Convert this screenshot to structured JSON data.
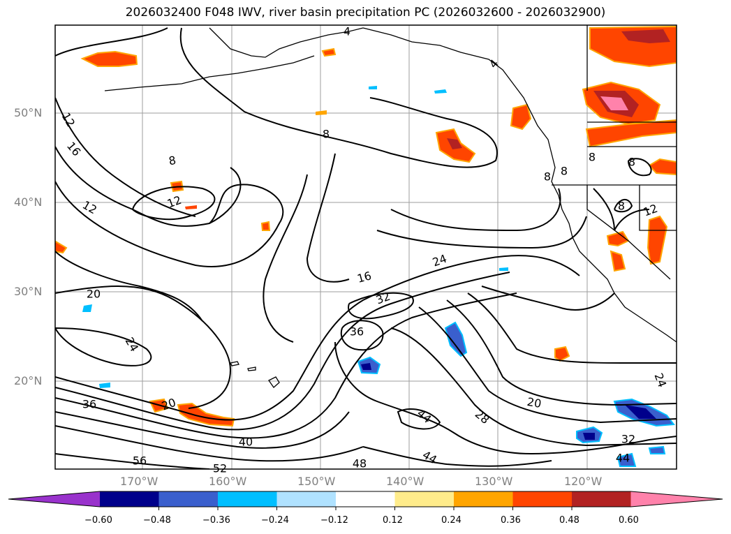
{
  "title": "2026032400 F048 IWV, river basin precipitation PC (2026032600 - 2026032900)",
  "lat_labels": [
    "50°N",
    "40°N",
    "30°N",
    "20°N"
  ],
  "lon_labels": [
    "170°W",
    "160°W",
    "150°W",
    "140°W",
    "130°W",
    "120°W"
  ],
  "contour_labels": [
    "4",
    "4",
    "12",
    "16",
    "8",
    "8",
    "12",
    "12",
    "20",
    "24",
    "16",
    "24",
    "32",
    "36",
    "20",
    "36",
    "40",
    "56",
    "52",
    "48",
    "44",
    "44",
    "28",
    "20",
    "32",
    "44",
    "24",
    "8",
    "8",
    "8",
    "8",
    "8",
    "12"
  ],
  "colorbar": {
    "ticks": [
      "−0.60",
      "−0.48",
      "−0.36",
      "−0.24",
      "−0.12",
      "0.12",
      "0.24",
      "0.36",
      "0.48",
      "0.60"
    ],
    "colors": [
      "#9932cc",
      "#00008b",
      "#3a5fcd",
      "#00bfff",
      "#b0e2ff",
      "#ffffff",
      "#ffec8b",
      "#ffa500",
      "#ff4500",
      "#b22222",
      "#ff82ab"
    ]
  },
  "colors": {
    "positive_strong": "#b22222",
    "positive_mid": "#ff4500",
    "positive_low": "#ffa500",
    "positive_faint": "#ffec8b",
    "negative_low": "#00bfff",
    "negative_mid": "#3a5fcd",
    "negative_strong": "#00008b",
    "pink": "#ff82ab"
  }
}
